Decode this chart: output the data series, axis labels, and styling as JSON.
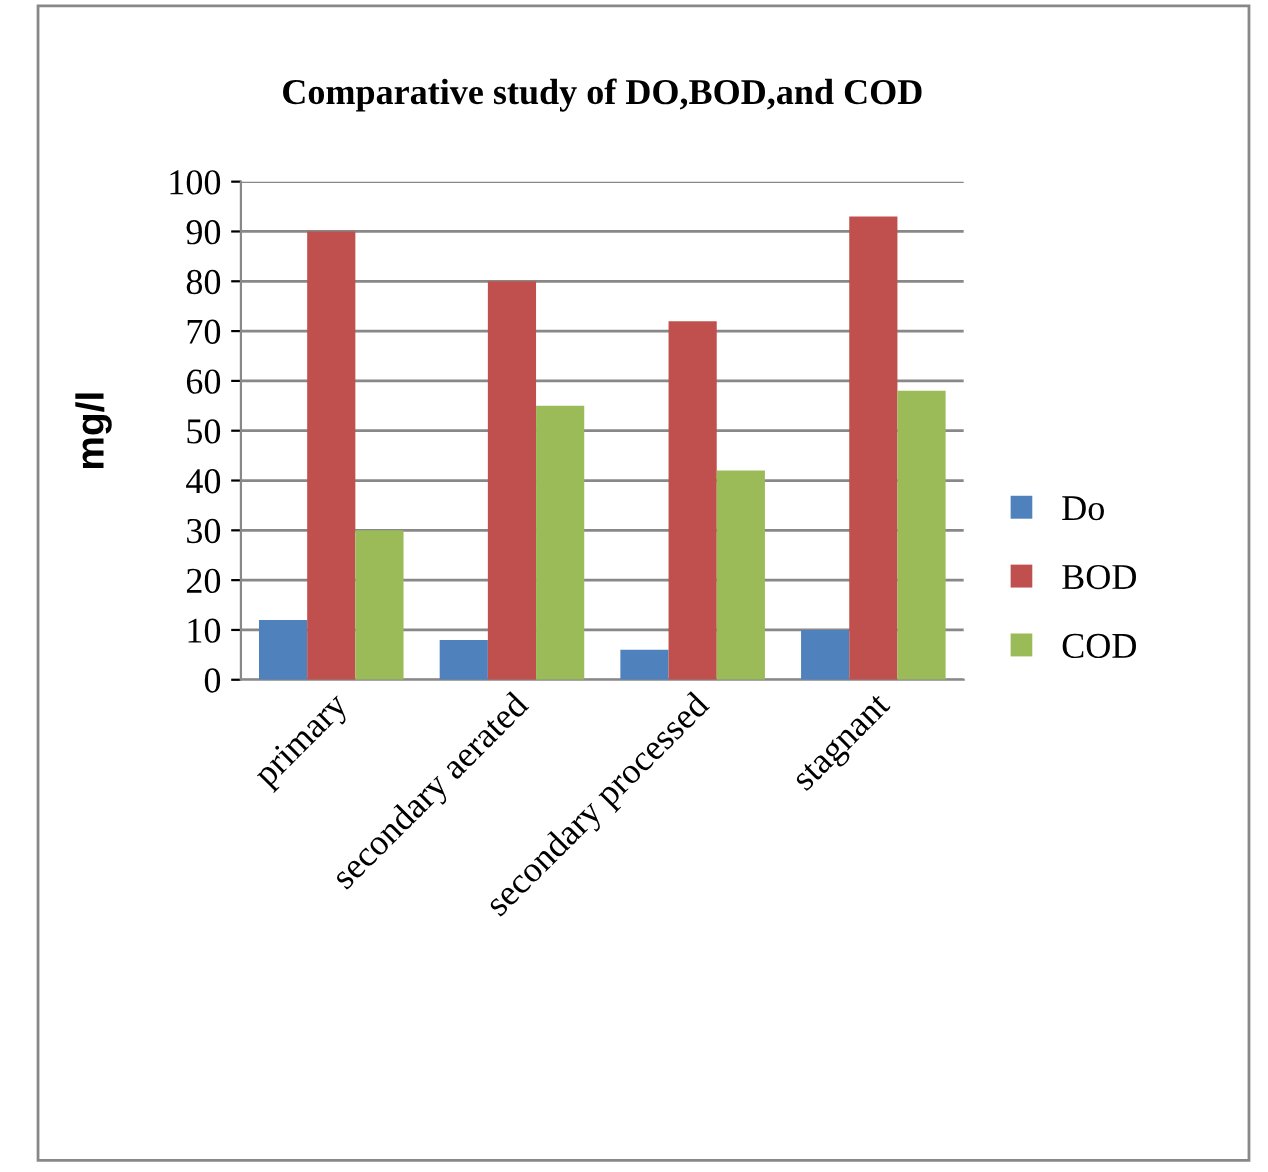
{
  "chart_data": {
    "type": "bar",
    "title": "Comparative study of DO,BOD,and COD",
    "ylabel": "mg/l",
    "categories": [
      "primary",
      "secondary aerated",
      "secondary processed",
      "stagnant"
    ],
    "series": [
      {
        "name": "Do",
        "color": "#4f81bd",
        "values": [
          12,
          8,
          6,
          10
        ]
      },
      {
        "name": "BOD",
        "color": "#c0504d",
        "values": [
          90,
          80,
          72,
          93
        ]
      },
      {
        "name": "COD",
        "color": "#9bbb59",
        "values": [
          30,
          55,
          42,
          58
        ]
      }
    ],
    "ylim": [
      0,
      100
    ],
    "yticks": [
      0,
      10,
      20,
      30,
      40,
      50,
      60,
      70,
      80,
      90,
      100
    ],
    "grid": "y",
    "legend": "right"
  }
}
